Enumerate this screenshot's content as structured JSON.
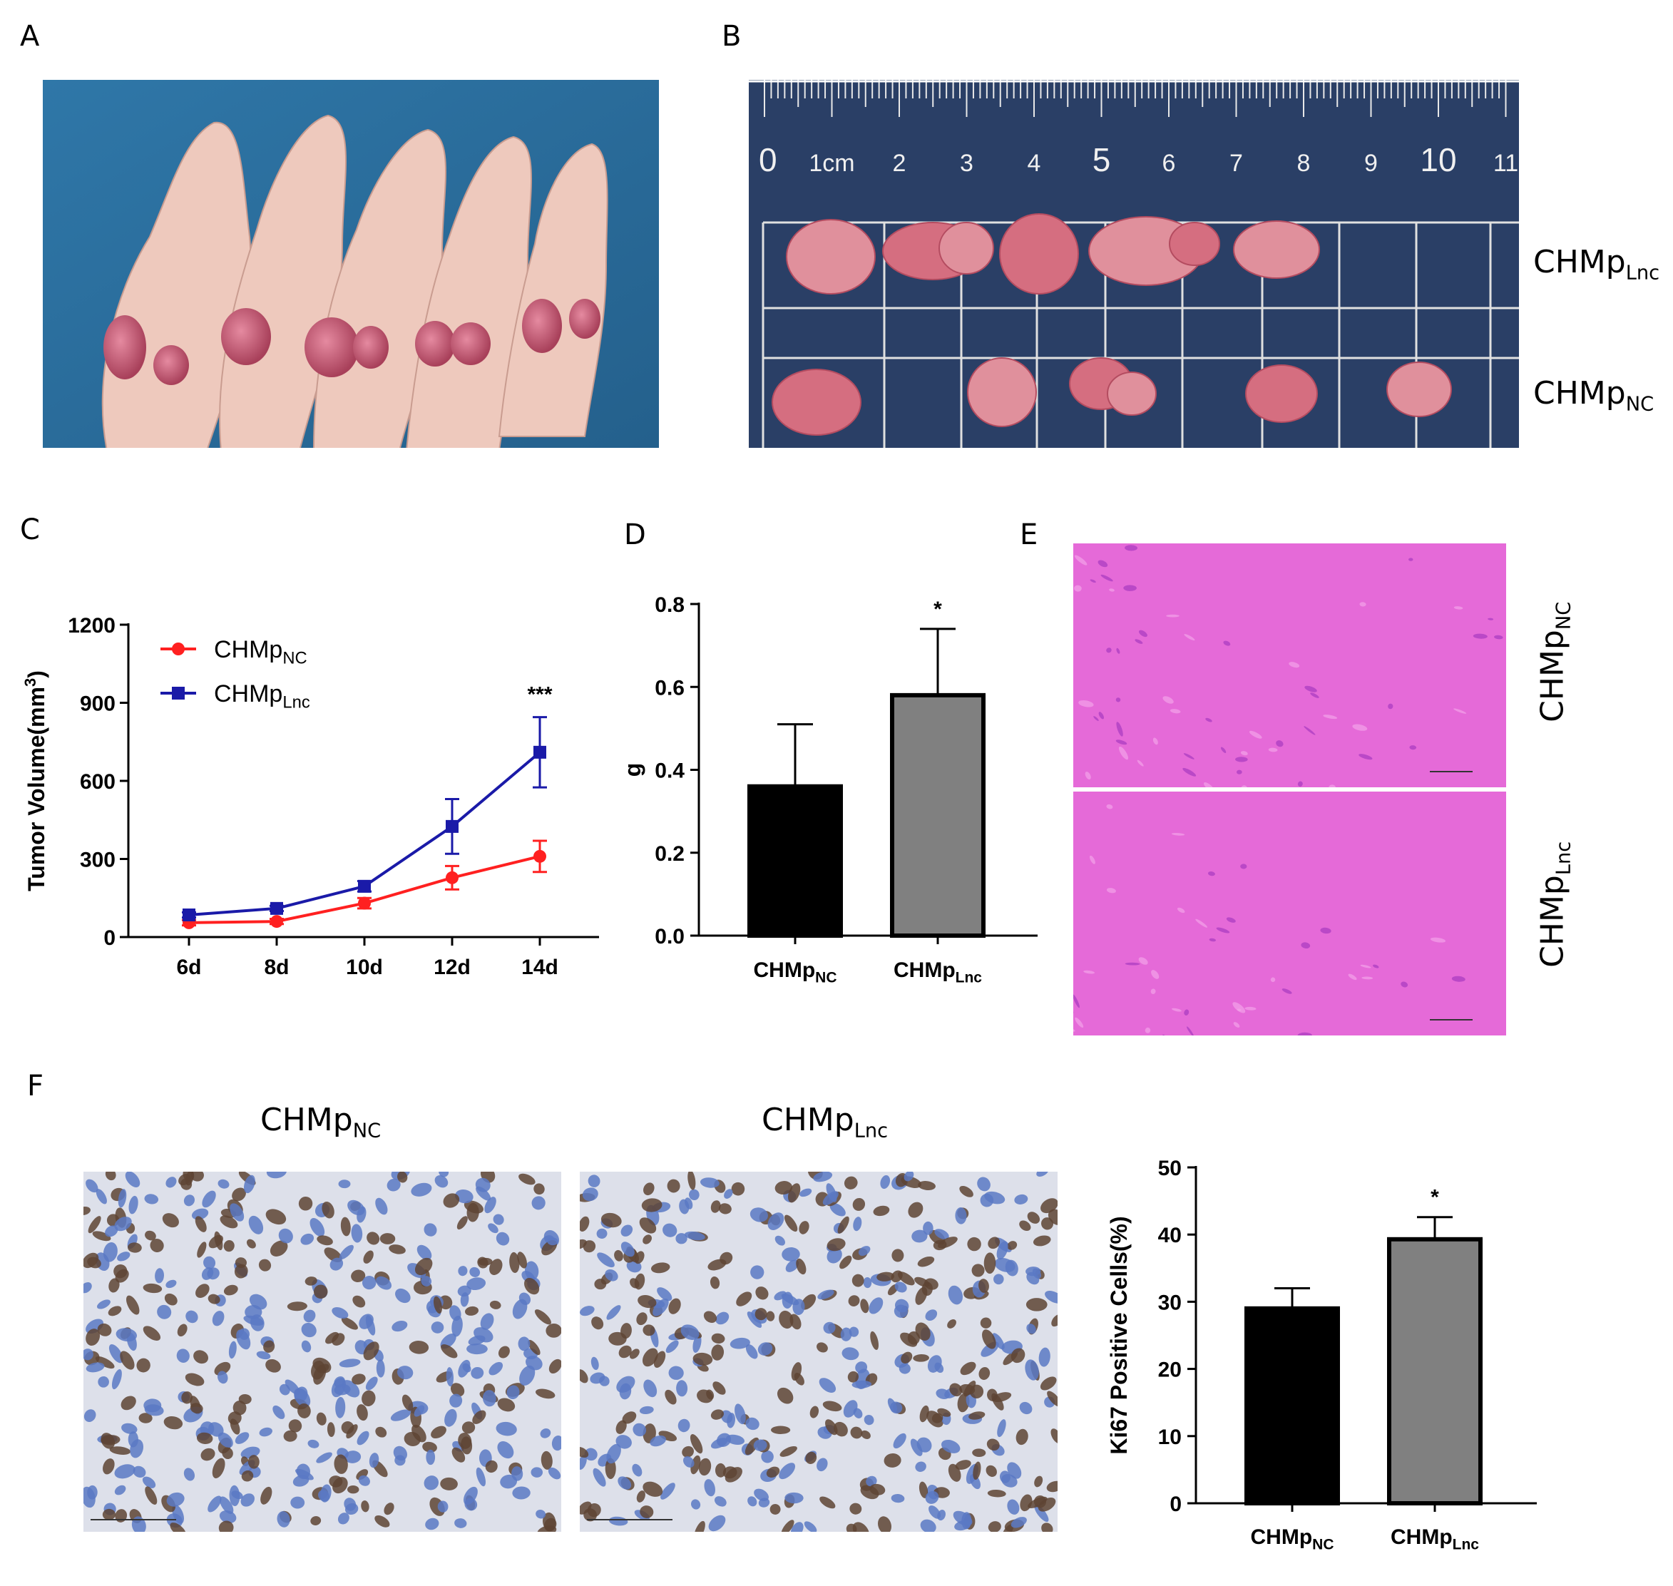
{
  "panels": {
    "A": "A",
    "B": "B",
    "C": "C",
    "D": "D",
    "E": "E",
    "F": "F"
  },
  "groups": {
    "nc": {
      "main": "CHMp",
      "sub": "NC"
    },
    "lnc": {
      "main": "CHMp",
      "sub": "Lnc"
    }
  },
  "ruler": {
    "numbers": [
      "0",
      "1cm",
      "2",
      "3",
      "4",
      "5",
      "6",
      "7",
      "8",
      "9",
      "10",
      "11"
    ]
  },
  "colors": {
    "nc_line": "#ff2020",
    "lnc_line": "#1a1aa8",
    "bar_nc": "#000000",
    "bar_lnc": "#808080",
    "mat_blue": "#2e6fa0",
    "board_blue": "#2a3f66",
    "he_pink": "#e268d6",
    "ihc_bg": "#dcdfe8"
  },
  "chart_data": [
    {
      "panel": "C",
      "type": "line",
      "ylabel_main": "Tumor Volume(mm",
      "ylabel_sup": "3",
      "ylabel_end": ")",
      "categories": [
        "6d",
        "8d",
        "10d",
        "12d",
        "14d"
      ],
      "ylim": [
        0,
        1200
      ],
      "yticks": [
        "0",
        "300",
        "600",
        "900",
        "1200"
      ],
      "series": [
        {
          "key": "nc",
          "name_main": "CHMp",
          "name_sub": "NC",
          "marker": "circle",
          "values": [
            55,
            60,
            130,
            228,
            310
          ],
          "errors": [
            10,
            10,
            20,
            45,
            60
          ]
        },
        {
          "key": "lnc",
          "name_main": "CHMp",
          "name_sub": "Lnc",
          "marker": "square",
          "values": [
            85,
            110,
            195,
            425,
            710
          ],
          "errors": [
            10,
            10,
            20,
            105,
            135
          ]
        }
      ],
      "annotation": "***",
      "legend": "top-left"
    },
    {
      "panel": "D",
      "type": "bar",
      "ylabel": "g",
      "categories": [
        {
          "main": "CHMp",
          "sub": "NC"
        },
        {
          "main": "CHMp",
          "sub": "Lnc"
        }
      ],
      "values": [
        0.36,
        0.58
      ],
      "errors": [
        0.15,
        0.16
      ],
      "ylim": [
        0,
        0.8
      ],
      "yticks": [
        "0.0",
        "0.2",
        "0.4",
        "0.6",
        "0.8"
      ],
      "annotation": "*"
    },
    {
      "panel": "F",
      "type": "bar",
      "ylabel": "Ki67 Positive Cells(%)",
      "categories": [
        {
          "main": "CHMp",
          "sub": "NC"
        },
        {
          "main": "CHMp",
          "sub": "Lnc"
        }
      ],
      "values": [
        29,
        39.3
      ],
      "errors": [
        3,
        3.3
      ],
      "ylim": [
        0,
        50
      ],
      "yticks": [
        "0",
        "10",
        "20",
        "30",
        "40",
        "50"
      ],
      "annotation": "*"
    }
  ]
}
